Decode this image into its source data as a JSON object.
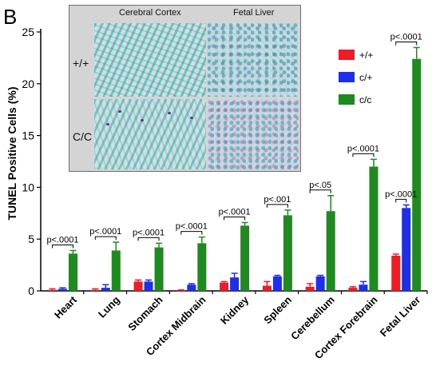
{
  "panel_label": "B",
  "inset": {
    "col_headers": [
      "Cerebral Cortex",
      "Fetal Liver"
    ],
    "row_labels": [
      "+/+",
      "C/C"
    ]
  },
  "colors": {
    "wt": "#ee1c25",
    "het": "#1f2ee8",
    "hom": "#1f8a1f"
  },
  "chart_data": {
    "type": "bar",
    "title": "",
    "xlabel": "",
    "ylabel": "TUNEL Positive Cells (%)",
    "ylim": [
      0,
      25
    ],
    "yticks": [
      0,
      5,
      10,
      15,
      20,
      25
    ],
    "grid": false,
    "legend_position": "top-right",
    "categories": [
      "Heart",
      "Lung",
      "Stomach",
      "Cortex Midbrain",
      "Kidney",
      "Spleen",
      "Cerebellum",
      "Cortex Forebrain",
      "Fetal Liver"
    ],
    "series": [
      {
        "name": "+/+",
        "color": "#ee1c25",
        "values": [
          0.1,
          0.1,
          0.9,
          0.05,
          0.8,
          0.5,
          0.4,
          0.3,
          3.4
        ],
        "errors": [
          0.1,
          0.1,
          0.15,
          0.05,
          0.1,
          0.4,
          0.3,
          0.1,
          0.15
        ]
      },
      {
        "name": "c/+",
        "color": "#1f2ee8",
        "values": [
          0.2,
          0.3,
          0.9,
          0.6,
          1.3,
          1.4,
          1.4,
          0.6,
          8.0
        ],
        "errors": [
          0.1,
          0.3,
          0.15,
          0.1,
          0.4,
          0.1,
          0.1,
          0.3,
          0.3
        ]
      },
      {
        "name": "c/c",
        "color": "#1f8a1f",
        "values": [
          3.6,
          3.9,
          4.2,
          4.6,
          6.3,
          7.3,
          7.7,
          12.0,
          22.4
        ],
        "errors": [
          0.3,
          0.8,
          0.4,
          0.6,
          0.3,
          0.5,
          1.5,
          0.7,
          1.1
        ]
      }
    ],
    "annotations": [
      {
        "category": "Heart",
        "text": "p<.0001"
      },
      {
        "category": "Lung",
        "text": "p<.0001"
      },
      {
        "category": "Stomach",
        "text": "p<.0001"
      },
      {
        "category": "Cortex Midbrain",
        "text": "p<.0001"
      },
      {
        "category": "Kidney",
        "text": "p<.0001"
      },
      {
        "category": "Spleen",
        "text": "p<.001"
      },
      {
        "category": "Cerebellum",
        "text": "p<.05"
      },
      {
        "category": "Cortex Forebrain",
        "text": "p<.0001"
      },
      {
        "category": "Fetal Liver",
        "text": "p<.0001",
        "pair": "wt-hom"
      },
      {
        "category": "Fetal Liver",
        "text": "p<.0001",
        "pair": "wt-het"
      }
    ]
  }
}
